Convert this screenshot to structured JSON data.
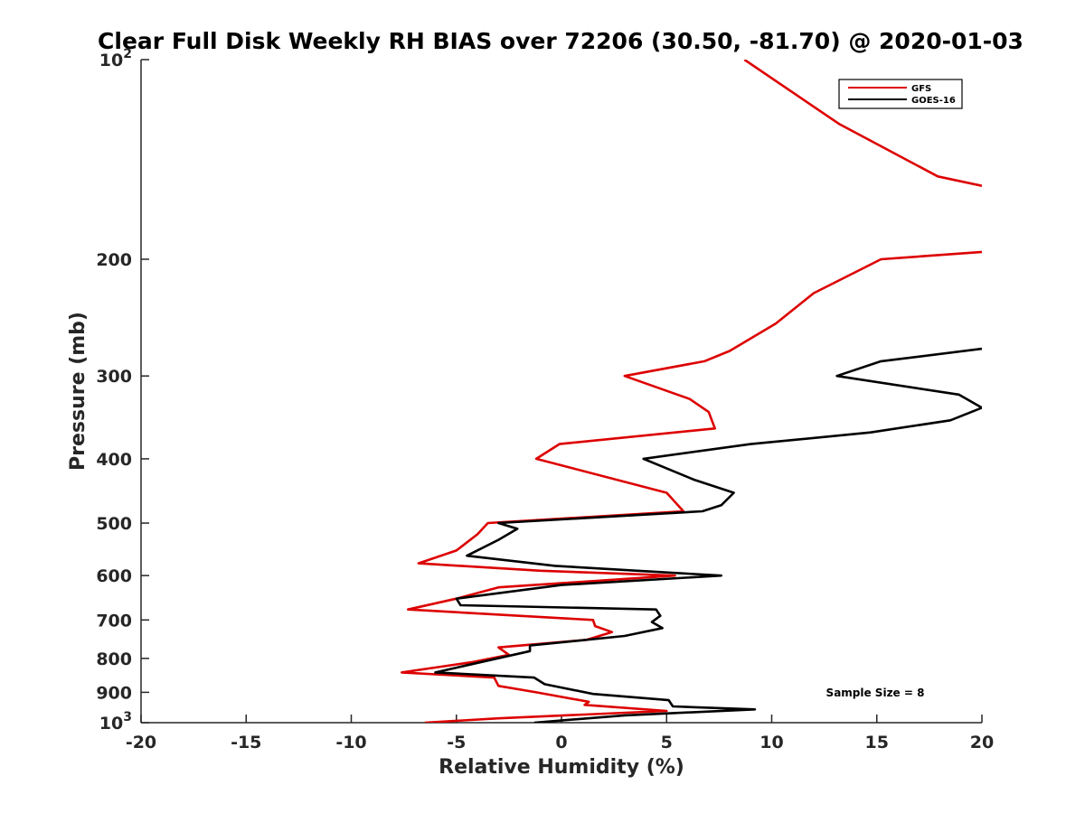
{
  "chart_data": {
    "type": "line",
    "title": "Clear Full Disk Weekly RH BIAS over 72206 (30.50, -81.70) @ 2020-01-03",
    "xlabel": "Relative Humidity (%)",
    "ylabel": "Pressure (mb)",
    "xlim": [
      -20,
      20
    ],
    "ylim": [
      1000,
      100
    ],
    "y_scale": "log",
    "y_reversed": true,
    "grid": false,
    "legend_position": "top-right",
    "x_ticks": [
      "-20",
      "-15",
      "-10",
      "-5",
      "0",
      "5",
      "10",
      "15",
      "20"
    ],
    "y_ticks": [
      {
        "value": 100,
        "base": "10",
        "exp": "2"
      },
      {
        "value": 200,
        "label": "200"
      },
      {
        "value": 300,
        "label": "300"
      },
      {
        "value": 400,
        "label": "400"
      },
      {
        "value": 500,
        "label": "500"
      },
      {
        "value": 600,
        "label": "600"
      },
      {
        "value": 700,
        "label": "700"
      },
      {
        "value": 800,
        "label": "800"
      },
      {
        "value": 900,
        "label": "900"
      },
      {
        "value": 1000,
        "base": "10",
        "exp": "3"
      }
    ],
    "annotation": "Sample Size = 8",
    "series": [
      {
        "name": "GFS",
        "color": "#dd0000",
        "segments": [
          [
            [
              8.7,
              100
            ],
            [
              13.2,
              125
            ],
            [
              17.9,
              150
            ],
            [
              20.0,
              155
            ]
          ],
          [
            [
              20.0,
              195
            ],
            [
              15.2,
              200
            ],
            [
              12.0,
              225
            ],
            [
              10.2,
              250
            ],
            [
              8.0,
              275
            ],
            [
              6.8,
              285
            ],
            [
              3.0,
              300
            ],
            [
              6.1,
              325
            ],
            [
              7.0,
              340
            ],
            [
              7.3,
              360
            ],
            [
              -0.1,
              380
            ],
            [
              -1.2,
              400
            ],
            [
              5.0,
              450
            ],
            [
              5.8,
              480
            ],
            [
              -3.5,
              500
            ],
            [
              -4.0,
              520
            ],
            [
              -5.0,
              550
            ],
            [
              -6.8,
              575
            ],
            [
              -1.0,
              590
            ],
            [
              5.4,
              600
            ],
            [
              -3.0,
              625
            ],
            [
              -5.0,
              650
            ],
            [
              -7.3,
              675
            ],
            [
              1.5,
              700
            ],
            [
              1.6,
              715
            ],
            [
              2.4,
              730
            ],
            [
              1.2,
              750
            ],
            [
              -3.0,
              770
            ],
            [
              -2.5,
              790
            ],
            [
              -4.2,
              810
            ],
            [
              -7.6,
              840
            ],
            [
              -3.2,
              855
            ],
            [
              -3.0,
              880
            ],
            [
              -1.2,
              900
            ],
            [
              1.3,
              930
            ],
            [
              1.1,
              940
            ],
            [
              5.0,
              960
            ],
            [
              -3.0,
              985
            ],
            [
              -6.5,
              1000
            ]
          ]
        ]
      },
      {
        "name": "GOES-16",
        "color": "#000000",
        "segments": [
          [
            [
              20.0,
              273
            ],
            [
              15.2,
              285
            ],
            [
              13.1,
              300
            ],
            [
              18.9,
              320
            ],
            [
              20.0,
              335
            ]
          ],
          [
            [
              20.0,
              335
            ],
            [
              18.5,
              350
            ],
            [
              14.7,
              365
            ],
            [
              9.0,
              380
            ],
            [
              3.9,
              400
            ],
            [
              6.3,
              430
            ],
            [
              8.2,
              450
            ],
            [
              7.6,
              470
            ],
            [
              6.7,
              480
            ],
            [
              -3.0,
              500
            ],
            [
              -2.1,
              510
            ],
            [
              -3.0,
              530
            ],
            [
              -4.5,
              560
            ],
            [
              -0.3,
              580
            ],
            [
              3.6,
              590
            ],
            [
              7.6,
              600
            ],
            [
              0.0,
              620
            ],
            [
              -5.0,
              650
            ],
            [
              -4.8,
              665
            ],
            [
              4.5,
              675
            ],
            [
              4.7,
              690
            ],
            [
              4.3,
              705
            ],
            [
              4.8,
              720
            ],
            [
              3.0,
              740
            ],
            [
              -1.5,
              765
            ],
            [
              -1.5,
              780
            ],
            [
              -3.8,
              810
            ],
            [
              -6.0,
              840
            ],
            [
              -1.3,
              855
            ],
            [
              -0.8,
              875
            ],
            [
              1.5,
              905
            ],
            [
              5.1,
              925
            ],
            [
              5.3,
              945
            ],
            [
              9.2,
              955
            ],
            [
              3.0,
              975
            ],
            [
              -1.3,
              1000
            ]
          ]
        ]
      }
    ]
  }
}
